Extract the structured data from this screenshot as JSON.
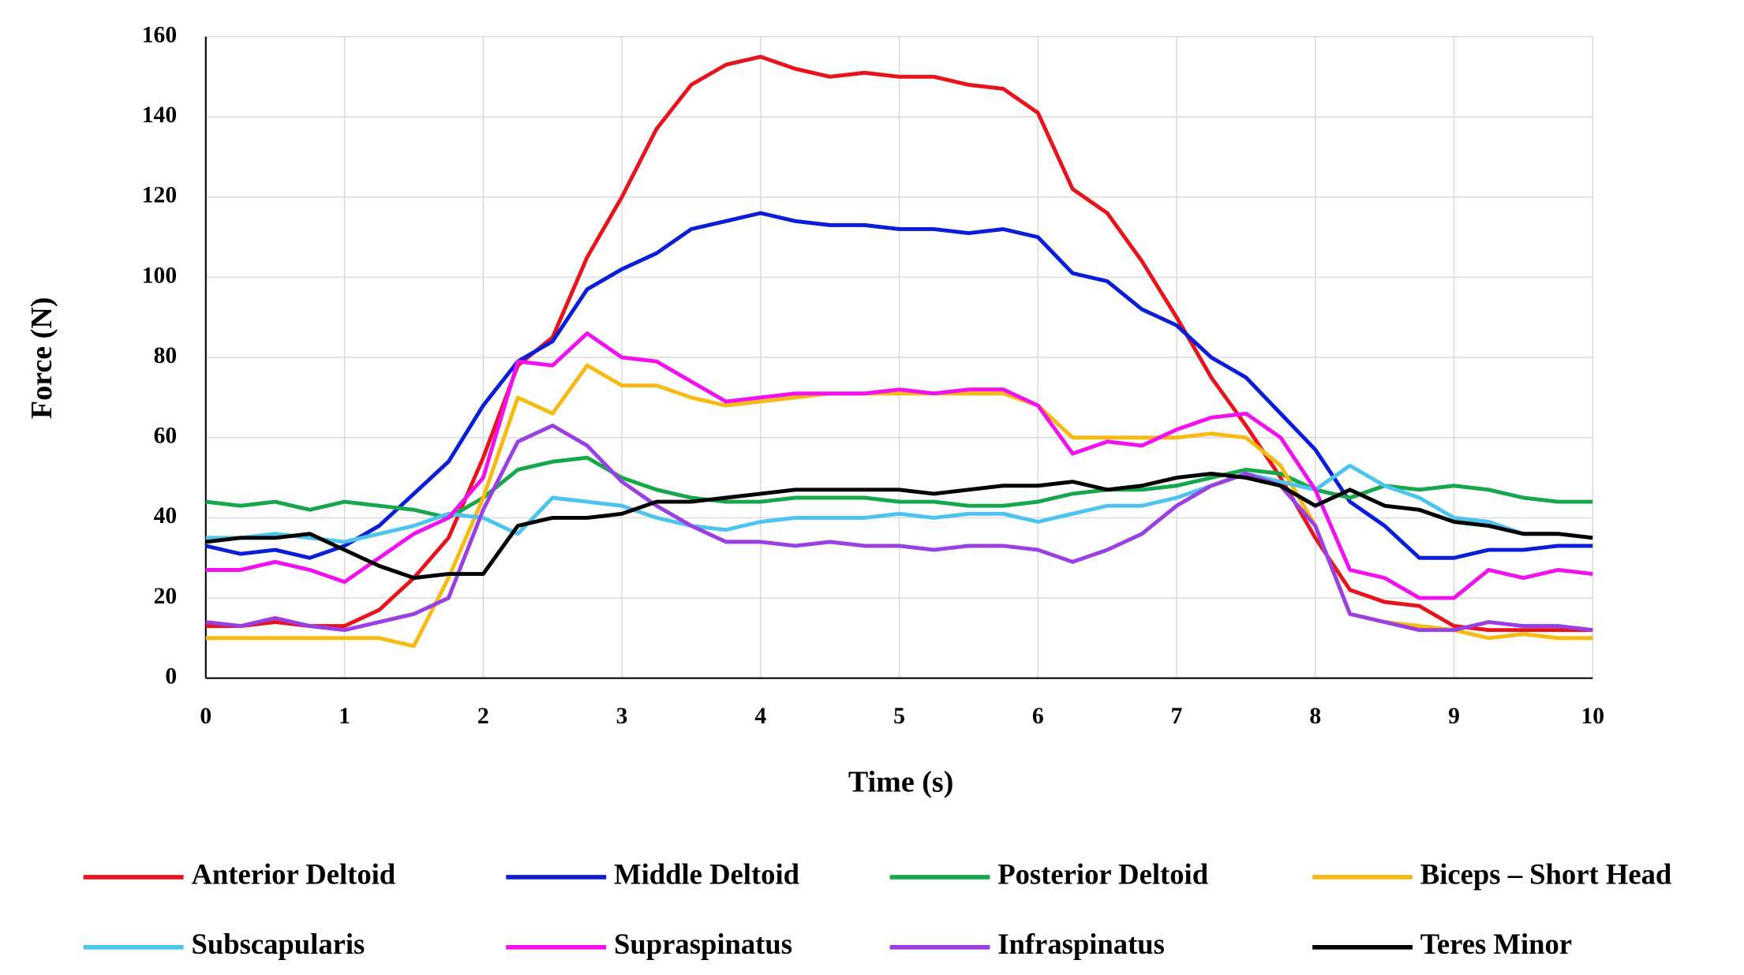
{
  "chart_data": {
    "type": "line",
    "x_label": "Time (s)",
    "y_label": "Force (N)",
    "x": [
      0,
      0.25,
      0.5,
      0.75,
      1,
      1.25,
      1.5,
      1.75,
      2,
      2.25,
      2.5,
      2.75,
      3,
      3.25,
      3.5,
      3.75,
      4,
      4.25,
      4.5,
      4.75,
      5,
      5.25,
      5.5,
      5.75,
      6,
      6.25,
      6.5,
      6.75,
      7,
      7.25,
      7.5,
      7.75,
      8,
      8.25,
      8.5,
      8.75,
      9,
      9.25,
      9.5,
      9.75,
      10
    ],
    "xlim": [
      0,
      10
    ],
    "xticks": [
      0,
      1,
      2,
      3,
      4,
      5,
      6,
      7,
      8,
      9,
      10
    ],
    "ylim": [
      0,
      160
    ],
    "yticks": [
      0,
      20,
      40,
      60,
      80,
      100,
      120,
      140,
      160
    ],
    "grid": true,
    "series": [
      {
        "name": "Anterior Deltoid",
        "color": "#e8141b",
        "values": [
          13,
          13,
          14,
          13,
          13,
          17,
          25,
          35,
          55,
          78,
          85,
          105,
          120,
          137,
          148,
          153,
          155,
          152,
          150,
          151,
          150,
          150,
          148,
          147,
          141,
          122,
          116,
          104,
          90,
          75,
          63,
          50,
          35,
          22,
          19,
          18,
          13,
          12,
          12,
          12,
          12
        ]
      },
      {
        "name": "Middle Deltoid",
        "color": "#0a1ed8",
        "values": [
          33,
          31,
          32,
          30,
          33,
          38,
          46,
          54,
          68,
          79,
          84,
          97,
          102,
          106,
          112,
          114,
          116,
          114,
          113,
          113,
          112,
          112,
          111,
          112,
          110,
          101,
          99,
          92,
          88,
          80,
          75,
          66,
          57,
          44,
          38,
          30,
          30,
          32,
          32,
          33,
          33
        ]
      },
      {
        "name": "Posterior Deltoid",
        "color": "#14a84a",
        "values": [
          44,
          43,
          44,
          42,
          44,
          43,
          42,
          40,
          45,
          52,
          54,
          55,
          50,
          47,
          45,
          44,
          44,
          45,
          45,
          45,
          44,
          44,
          43,
          43,
          44,
          46,
          47,
          47,
          48,
          50,
          52,
          51,
          47,
          45,
          48,
          47,
          48,
          47,
          45,
          44,
          44
        ]
      },
      {
        "name": "Biceps – Short Head",
        "color": "#f7ba12",
        "values": [
          10,
          10,
          10,
          10,
          10,
          10,
          8,
          25,
          45,
          70,
          66,
          78,
          73,
          73,
          70,
          68,
          69,
          70,
          71,
          71,
          71,
          71,
          71,
          71,
          68,
          60,
          60,
          60,
          60,
          61,
          60,
          53,
          38,
          16,
          14,
          13,
          12,
          10,
          11,
          10,
          10
        ]
      },
      {
        "name": "Subscapularis",
        "color": "#4cc4ef",
        "values": [
          35,
          35,
          36,
          35,
          34,
          36,
          38,
          41,
          40,
          36,
          45,
          44,
          43,
          40,
          38,
          37,
          39,
          40,
          40,
          40,
          41,
          40,
          41,
          41,
          39,
          41,
          43,
          43,
          45,
          48,
          51,
          49,
          47,
          53,
          48,
          45,
          40,
          39,
          36,
          36,
          35
        ]
      },
      {
        "name": "Supraspinatus",
        "color": "#f20ff0",
        "values": [
          27,
          27,
          29,
          27,
          24,
          30,
          36,
          40,
          50,
          79,
          78,
          86,
          80,
          79,
          74,
          69,
          70,
          71,
          71,
          71,
          72,
          71,
          72,
          72,
          68,
          56,
          59,
          58,
          62,
          65,
          66,
          60,
          47,
          27,
          25,
          20,
          20,
          27,
          25,
          27,
          26
        ]
      },
      {
        "name": "Infraspinatus",
        "color": "#9a3fe3",
        "values": [
          14,
          13,
          15,
          13,
          12,
          14,
          16,
          20,
          42,
          59,
          63,
          58,
          49,
          43,
          38,
          34,
          34,
          33,
          34,
          33,
          33,
          32,
          33,
          33,
          32,
          29,
          32,
          36,
          43,
          48,
          51,
          48,
          38,
          16,
          14,
          12,
          12,
          14,
          13,
          13,
          12
        ]
      },
      {
        "name": "Teres Minor",
        "color": "#000000",
        "values": [
          34,
          35,
          35,
          36,
          32,
          28,
          25,
          26,
          26,
          38,
          40,
          40,
          41,
          44,
          44,
          45,
          46,
          47,
          47,
          47,
          47,
          46,
          47,
          48,
          48,
          49,
          47,
          48,
          50,
          51,
          50,
          48,
          43,
          47,
          43,
          42,
          39,
          38,
          36,
          36,
          35
        ]
      }
    ]
  }
}
